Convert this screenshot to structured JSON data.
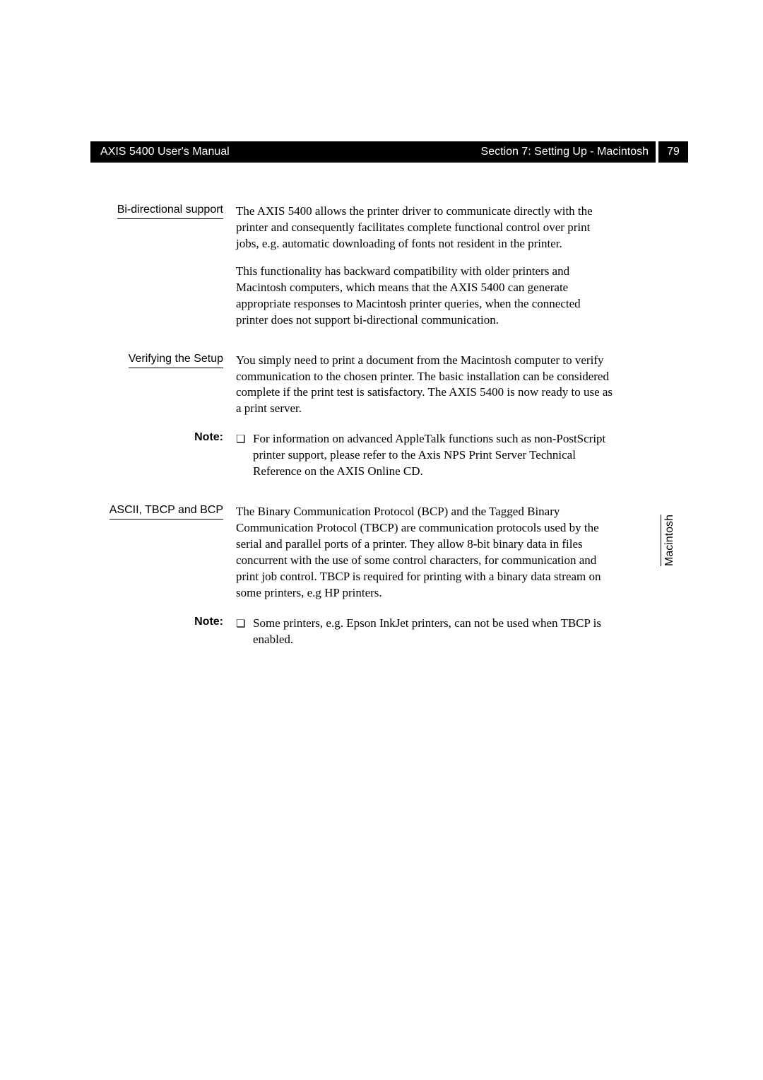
{
  "header": {
    "left": "AXIS 5400 User's Manual",
    "right": "Section 7: Setting Up - Macintosh",
    "page": "79"
  },
  "side_tab": "Macintosh",
  "sections": [
    {
      "label": "Bi-directional support",
      "underline": true,
      "paragraphs": [
        "The AXIS 5400 allows the printer driver to communicate directly with the printer and consequently facilitates complete functional control over print jobs, e.g. automatic downloading of fonts not resident in the printer.",
        "This functionality has backward compatibility with older printers and Macintosh computers, which means that the AXIS 5400 can generate appropriate responses to Macintosh printer queries, when the connected printer does not support bi-directional communication."
      ]
    },
    {
      "label": "Verifying the Setup",
      "underline": true,
      "paragraphs": [
        "You simply need to print a document from the Macintosh computer to verify communication to the chosen printer. The basic installation can be considered complete if the print test is satisfactory. The AXIS 5400 is now ready to use as a print server."
      ]
    },
    {
      "label": "Note:",
      "note": true,
      "bullet": "❏",
      "paragraphs": [
        "For information on advanced AppleTalk functions such as non-PostScript printer support, please refer to the Axis NPS Print Server Technical Reference on the AXIS Online CD."
      ]
    },
    {
      "label": "ASCII, TBCP and BCP",
      "underline": true,
      "paragraphs": [
        "The Binary Communication Protocol (BCP) and the Tagged Binary Communication Protocol (TBCP) are communication protocols used by the serial and parallel ports of a printer. They allow 8-bit binary data in files concurrent with the use of some control characters, for communication and print job control. TBCP is required for printing with a binary data stream on some printers, e.g HP printers."
      ]
    },
    {
      "label": "Note:",
      "note": true,
      "bullet": "❏",
      "paragraphs": [
        "Some printers, e.g. Epson InkJet printers, can not be used when TBCP is enabled."
      ]
    }
  ]
}
